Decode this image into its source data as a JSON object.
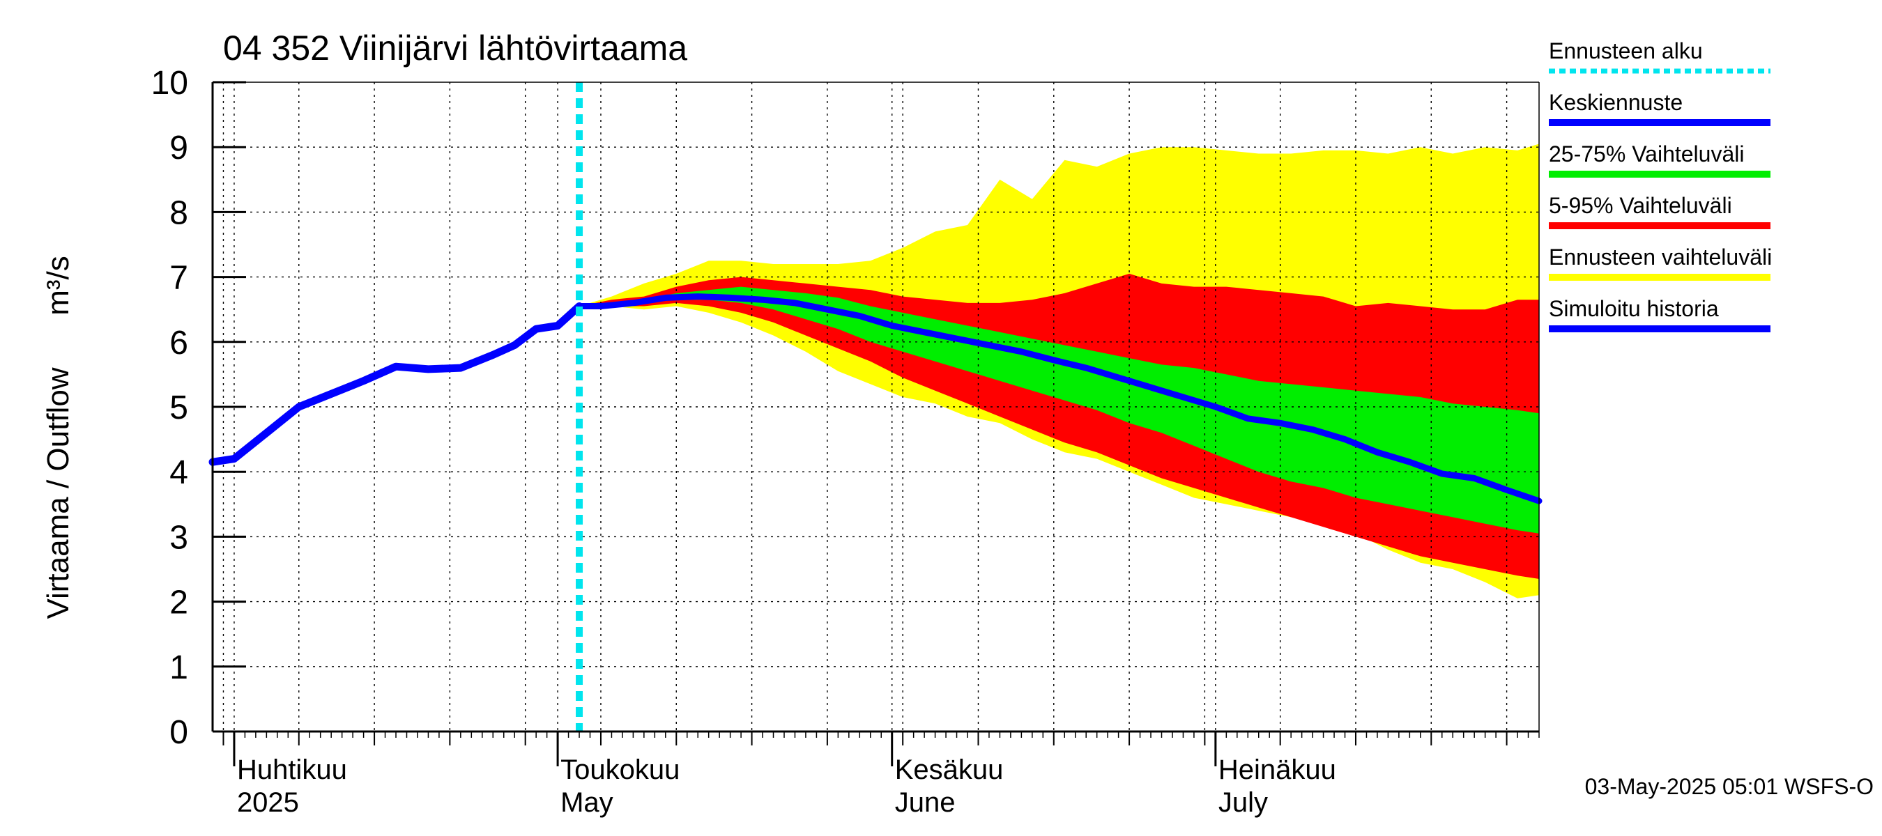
{
  "chart_data": {
    "type": "area",
    "title": "04 352 Viinijärvi lähtövirtaama",
    "ylabel_fi": "Virtaama / Outflow",
    "ylabel_unit": "m³/s",
    "ylim": [
      0,
      10
    ],
    "y_ticks": [
      "0",
      "1",
      "2",
      "3",
      "4",
      "5",
      "6",
      "7",
      "8",
      "9",
      "10"
    ],
    "x_range": [
      "2025-03-30",
      "2025-07-31"
    ],
    "forecast_start": "2025-05-03",
    "grid": true,
    "month_labels": [
      {
        "date": "2025-04-01",
        "fi": "Huhtikuu",
        "en": "2025"
      },
      {
        "date": "2025-05-01",
        "fi": "Toukokuu",
        "en": "May"
      },
      {
        "date": "2025-06-01",
        "fi": "Kesäkuu",
        "en": "June"
      },
      {
        "date": "2025-07-01",
        "fi": "Heinäkuu",
        "en": "July"
      }
    ],
    "legend": [
      {
        "label": "Ennusteen alku",
        "color": "#00e5ee",
        "style": "dotted"
      },
      {
        "label": "Keskiennuste",
        "color": "#0000ff",
        "style": "solid"
      },
      {
        "label": "25-75% Vaihteluväli",
        "color": "#00ee00",
        "style": "solid"
      },
      {
        "label": "5-95% Vaihteluväli",
        "color": "#ff0000",
        "style": "solid"
      },
      {
        "label": "Ennusteen vaihteluväli",
        "color": "#ffff00",
        "style": "solid"
      },
      {
        "label": "Simuloitu historia",
        "color": "#0000ff",
        "style": "solid"
      }
    ],
    "colors": {
      "forecast_range": "#ffff00",
      "range_5_95": "#ff0000",
      "range_25_75": "#00ee00",
      "median": "#0000ff",
      "history": "#0000ff",
      "forecast_start": "#00e5ee"
    },
    "history": {
      "x": [
        "2025-03-30",
        "2025-04-01",
        "2025-04-04",
        "2025-04-07",
        "2025-04-10",
        "2025-04-13",
        "2025-04-16",
        "2025-04-19",
        "2025-04-22",
        "2025-04-25",
        "2025-04-27",
        "2025-04-29",
        "2025-05-01",
        "2025-05-03"
      ],
      "values": [
        4.15,
        4.2,
        4.6,
        5.0,
        5.2,
        5.4,
        5.62,
        5.58,
        5.6,
        5.8,
        5.95,
        6.2,
        6.25,
        6.55
      ]
    },
    "median": {
      "x": [
        "2025-05-03",
        "2025-05-05",
        "2025-05-08",
        "2025-05-11",
        "2025-05-14",
        "2025-05-17",
        "2025-05-20",
        "2025-05-23",
        "2025-05-26",
        "2025-05-29",
        "2025-06-01",
        "2025-06-04",
        "2025-06-07",
        "2025-06-10",
        "2025-06-13",
        "2025-06-16",
        "2025-06-19",
        "2025-06-22",
        "2025-06-25",
        "2025-06-28",
        "2025-07-01",
        "2025-07-04",
        "2025-07-07",
        "2025-07-10",
        "2025-07-13",
        "2025-07-16",
        "2025-07-19",
        "2025-07-22",
        "2025-07-25",
        "2025-07-28",
        "2025-07-31"
      ],
      "values": [
        6.55,
        6.55,
        6.6,
        6.68,
        6.7,
        6.68,
        6.65,
        6.6,
        6.5,
        6.4,
        6.25,
        6.15,
        6.05,
        5.95,
        5.85,
        5.72,
        5.6,
        5.45,
        5.3,
        5.15,
        5.0,
        4.82,
        4.75,
        4.65,
        4.5,
        4.3,
        4.15,
        3.97,
        3.9,
        3.72,
        3.55
      ]
    },
    "bands": {
      "x": [
        "2025-05-03",
        "2025-05-06",
        "2025-05-09",
        "2025-05-12",
        "2025-05-15",
        "2025-05-18",
        "2025-05-21",
        "2025-05-24",
        "2025-05-27",
        "2025-05-30",
        "2025-06-02",
        "2025-06-05",
        "2025-06-08",
        "2025-06-11",
        "2025-06-14",
        "2025-06-17",
        "2025-06-20",
        "2025-06-23",
        "2025-06-26",
        "2025-06-29",
        "2025-07-02",
        "2025-07-05",
        "2025-07-08",
        "2025-07-11",
        "2025-07-14",
        "2025-07-17",
        "2025-07-20",
        "2025-07-23",
        "2025-07-26",
        "2025-07-29",
        "2025-07-31"
      ],
      "forecast_upper": [
        6.55,
        6.7,
        6.9,
        7.05,
        7.25,
        7.25,
        7.2,
        7.2,
        7.2,
        7.25,
        7.45,
        7.7,
        7.8,
        8.5,
        8.2,
        8.8,
        8.7,
        8.9,
        9.0,
        9.0,
        8.95,
        8.9,
        8.9,
        8.95,
        8.95,
        8.9,
        9.0,
        8.9,
        9.0,
        8.95,
        9.05
      ],
      "p95": [
        6.55,
        6.65,
        6.7,
        6.85,
        6.95,
        7.0,
        6.95,
        6.9,
        6.85,
        6.8,
        6.7,
        6.65,
        6.6,
        6.6,
        6.65,
        6.75,
        6.9,
        7.05,
        6.9,
        6.85,
        6.85,
        6.8,
        6.75,
        6.7,
        6.55,
        6.6,
        6.55,
        6.5,
        6.5,
        6.65,
        6.65
      ],
      "p75": [
        6.55,
        6.6,
        6.65,
        6.75,
        6.8,
        6.85,
        6.8,
        6.75,
        6.68,
        6.55,
        6.45,
        6.35,
        6.25,
        6.15,
        6.05,
        5.95,
        5.85,
        5.75,
        5.65,
        5.6,
        5.5,
        5.4,
        5.35,
        5.3,
        5.25,
        5.2,
        5.15,
        5.05,
        5.0,
        4.95,
        4.9
      ],
      "p25": [
        6.55,
        6.55,
        6.6,
        6.65,
        6.65,
        6.6,
        6.5,
        6.35,
        6.2,
        6.0,
        5.85,
        5.7,
        5.55,
        5.4,
        5.25,
        5.1,
        4.95,
        4.75,
        4.6,
        4.4,
        4.2,
        4.0,
        3.85,
        3.75,
        3.6,
        3.5,
        3.4,
        3.3,
        3.2,
        3.1,
        3.05
      ],
      "p5": [
        6.55,
        6.55,
        6.55,
        6.6,
        6.55,
        6.45,
        6.3,
        6.1,
        5.9,
        5.7,
        5.45,
        5.25,
        5.05,
        4.85,
        4.65,
        4.45,
        4.3,
        4.1,
        3.9,
        3.75,
        3.6,
        3.45,
        3.3,
        3.15,
        3.0,
        2.85,
        2.7,
        2.6,
        2.5,
        2.4,
        2.35
      ],
      "forecast_lower": [
        6.55,
        6.55,
        6.5,
        6.55,
        6.45,
        6.3,
        6.1,
        5.85,
        5.55,
        5.35,
        5.15,
        5.05,
        4.85,
        4.75,
        4.5,
        4.3,
        4.2,
        4.0,
        3.8,
        3.6,
        3.5,
        3.4,
        3.3,
        3.2,
        3.05,
        2.8,
        2.6,
        2.5,
        2.3,
        2.05,
        2.1
      ]
    }
  },
  "footer": {
    "timestamp": "03-May-2025 05:01 WSFS-O"
  }
}
